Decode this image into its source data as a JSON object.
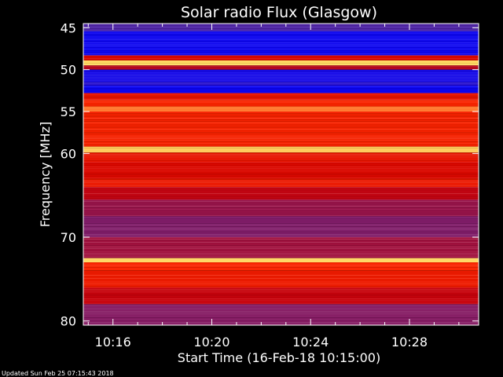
{
  "chart_data": {
    "type": "heatmap",
    "title": "Solar radio Flux (Glasgow)",
    "xlabel": "Start Time (16-Feb-18 10:15:00)",
    "ylabel": "Frequency [MHz]",
    "x_ticks": [
      "10:16",
      "10:20",
      "10:24",
      "10:28"
    ],
    "x_tick_minutes": [
      16,
      20,
      24,
      28
    ],
    "xlim_minutes": [
      14.8,
      30.8
    ],
    "y_ticks": [
      45,
      50,
      55,
      60,
      70,
      80
    ],
    "ylim_mhz": [
      44.5,
      80.5
    ],
    "colorscale": [
      "#0000ff",
      "#5a2a9a",
      "#d10000",
      "#ff2a00",
      "#ffd860"
    ],
    "bands": [
      {
        "from": 44.5,
        "to": 45.4,
        "level": 0.22
      },
      {
        "from": 45.4,
        "to": 48.3,
        "level": 0.04
      },
      {
        "from": 48.3,
        "to": 48.9,
        "level": 0.55
      },
      {
        "from": 48.9,
        "to": 49.5,
        "level": 1.0
      },
      {
        "from": 49.5,
        "to": 50.0,
        "level": 0.45
      },
      {
        "from": 50.0,
        "to": 51.5,
        "level": 0.06
      },
      {
        "from": 51.5,
        "to": 51.9,
        "level": 0.12
      },
      {
        "from": 51.9,
        "to": 52.8,
        "level": 0.03
      },
      {
        "from": 52.8,
        "to": 53.6,
        "level": 0.62
      },
      {
        "from": 53.6,
        "to": 54.4,
        "level": 0.72
      },
      {
        "from": 54.4,
        "to": 55.0,
        "level": 0.86
      },
      {
        "from": 55.0,
        "to": 59.2,
        "level": 0.7
      },
      {
        "from": 59.2,
        "to": 59.9,
        "level": 0.98
      },
      {
        "from": 59.9,
        "to": 61.0,
        "level": 0.62
      },
      {
        "from": 61.0,
        "to": 63.0,
        "level": 0.55
      },
      {
        "from": 63.0,
        "to": 64.0,
        "level": 0.64
      },
      {
        "from": 64.0,
        "to": 65.5,
        "level": 0.47
      },
      {
        "from": 65.5,
        "to": 67.5,
        "level": 0.38
      },
      {
        "from": 67.5,
        "to": 70.0,
        "level": 0.33
      },
      {
        "from": 70.0,
        "to": 72.5,
        "level": 0.4
      },
      {
        "from": 72.5,
        "to": 73.0,
        "level": 1.0
      },
      {
        "from": 73.0,
        "to": 74.0,
        "level": 0.72
      },
      {
        "from": 74.0,
        "to": 76.0,
        "level": 0.66
      },
      {
        "from": 76.0,
        "to": 78.0,
        "level": 0.48
      },
      {
        "from": 78.0,
        "to": 80.5,
        "level": 0.34
      }
    ]
  },
  "footer": {
    "updated_text": "Updated Sun Feb 25 07:15:43 2018"
  }
}
